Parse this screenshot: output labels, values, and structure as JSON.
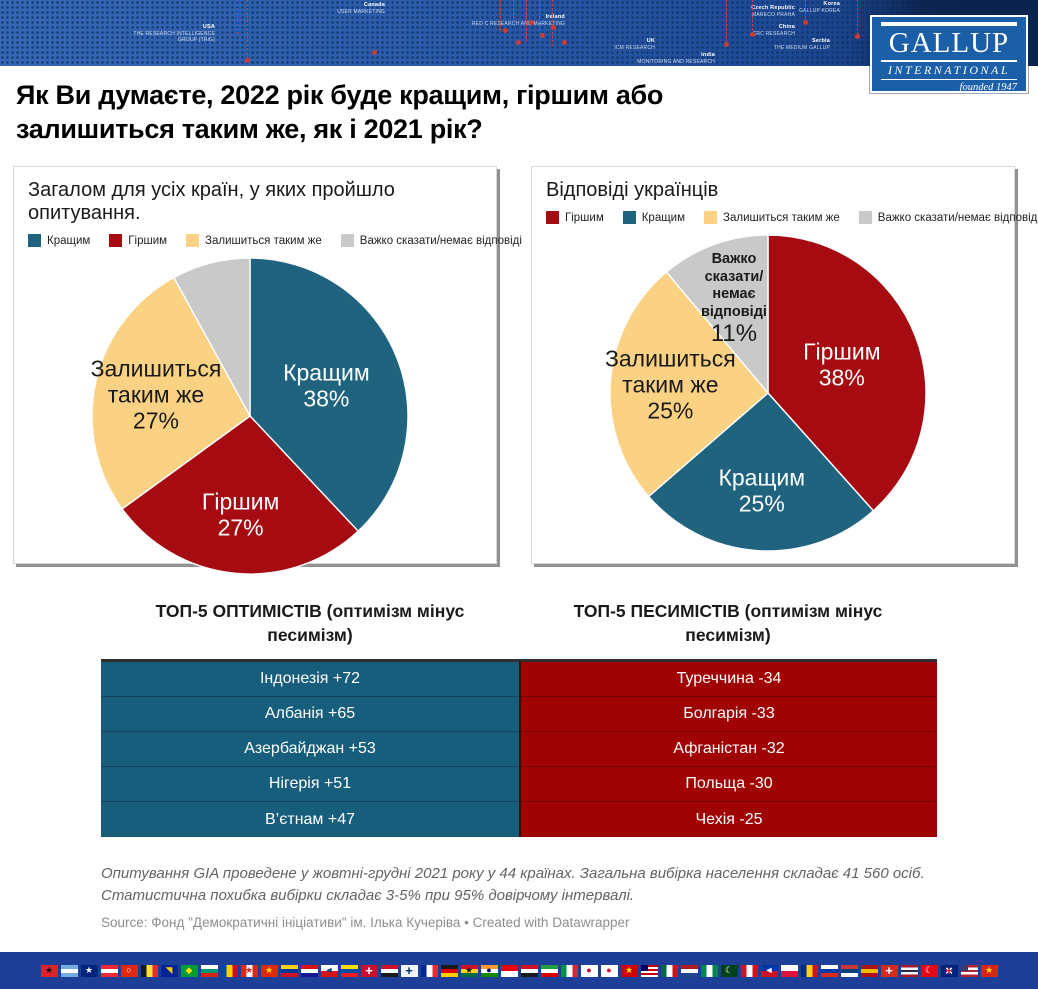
{
  "banner": {
    "logo": {
      "name": "GALLUP",
      "subtitle": "INTERNATIONAL",
      "tagline": "founded 1947"
    },
    "map_labels": [
      {
        "country": "USA",
        "org": "THE RESEARCH INTELLIGENCE GROUP (TRiG)"
      },
      {
        "country": "Canada",
        "org": "USER MARKETING"
      },
      {
        "country": "Ireland",
        "org": "RED C RESEARCH AND MARKETING"
      },
      {
        "country": "UK",
        "org": "ICM RESEARCH"
      },
      {
        "country": "Czech Republic",
        "org": "MARECO PRAHA"
      },
      {
        "country": "Serbia",
        "org": "THE MEDIUM GALLUP"
      },
      {
        "country": "Korea",
        "org": "GALLUP KOREA"
      },
      {
        "country": "China",
        "org": "CRC RESEARCH"
      },
      {
        "country": "India",
        "org": "MONITORING AND RESEARCH"
      }
    ]
  },
  "page_title": "Як Ви думаєте, 2022 рік буде кращим, гіршим або залишиться таким же, як і 2021 рік?",
  "chart_data": [
    {
      "type": "pie",
      "card_title": "Загалом для усіх країн, у яких пройшло опитування.",
      "legend_position": "top",
      "start_angle_deg": 0,
      "direction": "clockwise",
      "legend": [
        {
          "label": "Кращим",
          "color": "#20637e"
        },
        {
          "label": "Гіршим",
          "color": "#a60b12"
        },
        {
          "label": "Залишиться таким же",
          "color": "#fbd284"
        },
        {
          "label": "Важко сказати/немає відповіді",
          "color": "#c9c9ca"
        }
      ],
      "slices": [
        {
          "label": "Кращим",
          "value": 38,
          "color": "#20637e",
          "text_color": "#ffffff",
          "show_label": true,
          "label_lines": [
            "Кращим"
          ],
          "label_r": 0.52
        },
        {
          "label": "Гіршим",
          "value": 27,
          "color": "#a60b12",
          "text_color": "#ffffff",
          "show_label": true,
          "label_lines": [
            "Гіршим"
          ],
          "label_r": 0.63
        },
        {
          "label": "Залишиться таким же",
          "value": 27,
          "color": "#fbd284",
          "text_color": "#1a1a1a",
          "show_label": true,
          "label_lines": [
            "Залишиться",
            "таким же"
          ],
          "label_r": 0.61
        },
        {
          "label": "Важко сказати/немає відповіді",
          "value": 8,
          "color": "#c9c9ca",
          "text_color": "#1a1a1a",
          "show_label": false,
          "label_lines": [],
          "label_r": 0.6
        }
      ]
    },
    {
      "type": "pie",
      "card_title": "Відповіді українців",
      "legend_position": "top",
      "start_angle_deg": 0,
      "direction": "clockwise",
      "legend": [
        {
          "label": "Гіршим",
          "color": "#a60b12"
        },
        {
          "label": "Кращим",
          "color": "#20637e"
        },
        {
          "label": "Залишиться таким же",
          "color": "#fbd284"
        },
        {
          "label": "Важко сказати/немає відповіді",
          "color": "#c9c9ca"
        }
      ],
      "slices": [
        {
          "label": "Гіршим",
          "value": 38,
          "color": "#a60b12",
          "text_color": "#ffffff",
          "show_label": true,
          "label_lines": [
            "Гіршим"
          ],
          "label_r": 0.5
        },
        {
          "label": "Кращим",
          "value": 25,
          "color": "#20637e",
          "text_color": "#ffffff",
          "show_label": true,
          "label_lines": [
            "Кращим"
          ],
          "label_r": 0.62
        },
        {
          "label": "Залишиться таким же",
          "value": 25,
          "color": "#fbd284",
          "text_color": "#1a1a1a",
          "show_label": true,
          "label_lines": [
            "Залишиться",
            "таким же"
          ],
          "label_r": 0.62
        },
        {
          "label": "Важко сказати/немає відповіді",
          "value": 11,
          "color": "#c9c9ca",
          "text_color": "#1a1a1a",
          "show_label": true,
          "small_name": true,
          "label_lines": [
            "Важко",
            "сказати/",
            "немає",
            "відповіді"
          ],
          "label_r": 0.63
        }
      ]
    },
    {
      "type": "table",
      "title": "ТОП-5 ОПТИМІСТІВ (оптимізм мінус песимізм)",
      "bg_color": "#175e7c",
      "rows": [
        "Індонезія +72",
        "Албанія +65",
        "Азербайджан +53",
        "Нігерія +51",
        "В’єтнам +47"
      ]
    },
    {
      "type": "table",
      "title": "ТОП-5 ПЕСИМІСТІВ (оптимізм мінус песимізм)",
      "bg_color": "#a00303",
      "rows": [
        "Туреччина -34",
        "Болгарія -33",
        "Афганістан -32",
        "Польща -30",
        "Чехія -25"
      ]
    }
  ],
  "footer": {
    "note": "Опитування GIA проведене у жовтні-грудні 2021 року у 44 країнах. Загальна вибірка населення складає 41 560 осіб. Статистична похибка вибірки складає 3-5% при 95% довірчому інтервалі.",
    "source": "Source: Фонд \"Демократичні ініціативи\" ім. Ілька Кучеріва • Created with Datawrapper"
  },
  "flags": [
    {
      "name": "albania",
      "colors": [
        "#d9242e"
      ],
      "badge": "★",
      "badge_color": "#17171c"
    },
    {
      "name": "argentina",
      "colors": [
        "#74acdf",
        "#ffffff",
        "#74acdf"
      ]
    },
    {
      "name": "australia",
      "colors": [
        "#00247d"
      ],
      "badge": "★",
      "badge_color": "#ffffff"
    },
    {
      "name": "austria",
      "colors": [
        "#ed2939",
        "#ffffff",
        "#ed2939"
      ]
    },
    {
      "name": "hong-kong",
      "colors": [
        "#de2910"
      ],
      "badge": "○",
      "badge_color": "#ffffff"
    },
    {
      "name": "belgium",
      "dir": "v",
      "colors": [
        "#1a1a1a",
        "#fae042",
        "#ed2939"
      ]
    },
    {
      "name": "bosnia-herzegovina",
      "colors": [
        "#002395"
      ],
      "badge": "◥",
      "badge_color": "#fecb00"
    },
    {
      "name": "brazil",
      "colors": [
        "#009c3b"
      ],
      "badge": "◆",
      "badge_color": "#ffdf00"
    },
    {
      "name": "bulgaria",
      "colors": [
        "#ffffff",
        "#00966e",
        "#d62612"
      ]
    },
    {
      "name": "moldova",
      "dir": "v",
      "colors": [
        "#0046ae",
        "#ffd200",
        "#cc092f"
      ]
    },
    {
      "name": "canada",
      "dir": "v",
      "colors": [
        "#d52b1e",
        "#ffffff",
        "#d52b1e"
      ],
      "badge": "★",
      "badge_color": "#d52b1e"
    },
    {
      "name": "china",
      "colors": [
        "#de2910"
      ],
      "badge": "★",
      "badge_color": "#ffde00"
    },
    {
      "name": "colombia",
      "colors": [
        "#fcd116",
        "#003893",
        "#ce1126"
      ]
    },
    {
      "name": "croatia",
      "colors": [
        "#d7141a",
        "#ffffff",
        "#171796"
      ]
    },
    {
      "name": "czechia",
      "colors": [
        "#ffffff",
        "#d7141a"
      ],
      "badge": "◄",
      "badge_color": "#11457e"
    },
    {
      "name": "ecuador",
      "colors": [
        "#ffdd00",
        "#034ea2",
        "#ed1c24"
      ]
    },
    {
      "name": "denmark",
      "colors": [
        "#c8102e"
      ],
      "badge": "+",
      "badge_color": "#ffffff",
      "badge_cross": true
    },
    {
      "name": "egypt",
      "colors": [
        "#ce1126",
        "#ffffff",
        "#1a1a1a"
      ]
    },
    {
      "name": "finland",
      "colors": [
        "#f3f5f8"
      ],
      "badge": "+",
      "badge_color": "#002f6c",
      "badge_cross": true
    },
    {
      "name": "france",
      "dir": "v",
      "colors": [
        "#002395",
        "#ffffff",
        "#ed2939"
      ]
    },
    {
      "name": "germany",
      "colors": [
        "#1a1a1a",
        "#dd0000",
        "#ffce00"
      ]
    },
    {
      "name": "ghana",
      "colors": [
        "#ce1126",
        "#fcd116",
        "#006b3f"
      ],
      "badge": "★",
      "badge_color": "#1a1a1a"
    },
    {
      "name": "india",
      "colors": [
        "#ff9933",
        "#ffffff",
        "#138808"
      ],
      "badge": "●",
      "badge_color": "#000080"
    },
    {
      "name": "indonesia",
      "colors": [
        "#e70011",
        "#ffffff"
      ]
    },
    {
      "name": "iraq",
      "colors": [
        "#ce1126",
        "#ffffff",
        "#1a1a1a"
      ]
    },
    {
      "name": "iran",
      "colors": [
        "#239f40",
        "#ffffff",
        "#da0000"
      ]
    },
    {
      "name": "italy",
      "dir": "v",
      "colors": [
        "#009246",
        "#ffffff",
        "#ce2b37"
      ]
    },
    {
      "name": "japan",
      "colors": [
        "#ffffff"
      ],
      "badge": "●",
      "badge_color": "#bc002d"
    },
    {
      "name": "south-korea",
      "colors": [
        "#ffffff"
      ],
      "badge": "●",
      "badge_color": "#c60c30"
    },
    {
      "name": "north-macedonia",
      "colors": [
        "#d20000"
      ],
      "badge": "★",
      "badge_color": "#ffe600"
    },
    {
      "name": "malaysia",
      "colors": [
        "#cc0001",
        "#ffffff",
        "#cc0001",
        "#ffffff",
        "#cc0001",
        "#ffffff"
      ],
      "canton": "#010066"
    },
    {
      "name": "mexico",
      "dir": "v",
      "colors": [
        "#006847",
        "#ffffff",
        "#ce1126"
      ]
    },
    {
      "name": "netherlands",
      "colors": [
        "#ae1c28",
        "#ffffff",
        "#21468b"
      ]
    },
    {
      "name": "nigeria",
      "dir": "v",
      "colors": [
        "#008751",
        "#ffffff",
        "#008751"
      ]
    },
    {
      "name": "pakistan",
      "colors": [
        "#01411c"
      ],
      "badge": "☾",
      "badge_color": "#ffffff"
    },
    {
      "name": "peru",
      "dir": "v",
      "colors": [
        "#d91023",
        "#ffffff",
        "#d91023"
      ]
    },
    {
      "name": "philippines",
      "colors": [
        "#0038a8",
        "#ce1126"
      ],
      "badge": "◄",
      "badge_color": "#ffffff"
    },
    {
      "name": "poland",
      "colors": [
        "#ffffff",
        "#dc143c"
      ]
    },
    {
      "name": "romania",
      "dir": "v",
      "colors": [
        "#002b7f",
        "#fcd116",
        "#ce1126"
      ]
    },
    {
      "name": "russia",
      "colors": [
        "#ffffff",
        "#0039a6",
        "#d52b1e"
      ]
    },
    {
      "name": "serbia",
      "colors": [
        "#c6363c",
        "#0c4076",
        "#ffffff"
      ]
    },
    {
      "name": "spain",
      "colors": [
        "#aa151b",
        "#f1bf00",
        "#aa151b"
      ]
    },
    {
      "name": "switzerland",
      "colors": [
        "#d52b1e"
      ],
      "badge": "+",
      "badge_color": "#ffffff",
      "badge_cross": true
    },
    {
      "name": "thailand",
      "colors": [
        "#a51931",
        "#f4f5f8",
        "#2d2a4a",
        "#f4f5f8",
        "#a51931"
      ]
    },
    {
      "name": "turkey",
      "colors": [
        "#e30a17"
      ],
      "badge": "☾",
      "badge_color": "#ffffff"
    },
    {
      "name": "uk",
      "colors": [
        "#00247d"
      ],
      "badge": "×",
      "badge_color": "#ffffff",
      "badge_cross": true,
      "badge2": "+",
      "badge2_color": "#cf142b"
    },
    {
      "name": "usa",
      "colors": [
        "#b22234",
        "#ffffff",
        "#b22234",
        "#ffffff",
        "#b22234"
      ],
      "canton": "#3c3b6e"
    },
    {
      "name": "vietnam",
      "colors": [
        "#da251d"
      ],
      "badge": "★",
      "badge_color": "#ffde00"
    }
  ]
}
